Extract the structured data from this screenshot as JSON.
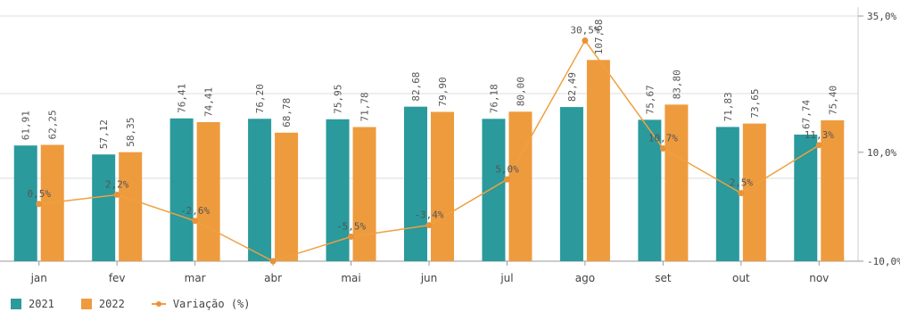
{
  "chart_data": {
    "type": "bar",
    "categories": [
      "jan",
      "fev",
      "mar",
      "abr",
      "mai",
      "jun",
      "jul",
      "ago",
      "set",
      "out",
      "nov"
    ],
    "series": [
      {
        "name": "2021",
        "type": "bar",
        "color": "#2a9a9c",
        "values": [
          61.91,
          57.12,
          76.41,
          76.2,
          75.95,
          82.68,
          76.18,
          82.49,
          75.67,
          71.83,
          67.74
        ],
        "labels": [
          "61,91",
          "57,12",
          "76,41",
          "76,20",
          "75,95",
          "82,68",
          "76,18",
          "82,49",
          "75,67",
          "71,83",
          "67,74"
        ]
      },
      {
        "name": "2022",
        "type": "bar",
        "color": "#ee9b3e",
        "values": [
          62.25,
          58.35,
          74.41,
          68.78,
          71.78,
          79.9,
          80.0,
          107.68,
          83.8,
          73.65,
          75.4
        ],
        "labels": [
          "62,25",
          "58,35",
          "74,41",
          "68,78",
          "71,78",
          "79,90",
          "80,00",
          "107,68",
          "83,80",
          "73,65",
          "75,40"
        ]
      },
      {
        "name": "Variação (%)",
        "type": "line",
        "axis": "right",
        "color": "#f0a040",
        "values": [
          0.5,
          2.2,
          -2.6,
          -10.0,
          -5.5,
          -3.4,
          5.0,
          30.5,
          10.7,
          2.5,
          11.3
        ],
        "labels": [
          "0,5%",
          "2,2%",
          "-2,6%",
          "",
          "-5,5%",
          "-3,4%",
          "5,0%",
          "30,5%",
          "10,7%",
          "2,5%",
          "11,3%"
        ]
      }
    ],
    "y_left_range": [
      0,
      135
    ],
    "y_right_range": [
      -10.0,
      35.0
    ],
    "y_right_ticks": [
      "35,0%",
      "10,0%",
      "-10,0%"
    ],
    "legend_position": "bottom-left"
  }
}
